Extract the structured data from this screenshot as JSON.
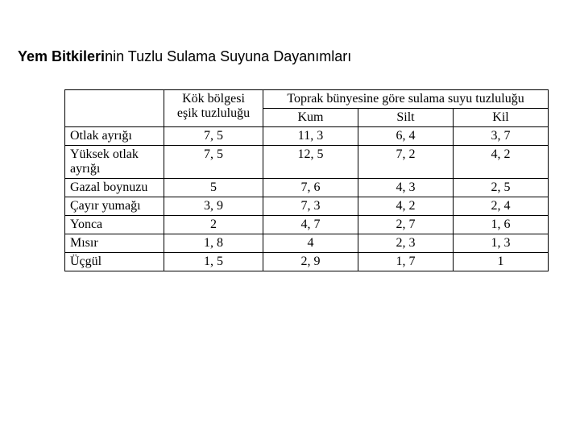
{
  "title_bold": "Yem Bitkileri",
  "title_rest": "nin Tuzlu Sulama Suyuna Dayanımları",
  "table": {
    "header_kok_l1": "Kök bölgesi",
    "header_kok_l2": "eşik tuzluluğu",
    "header_toprak": "Toprak bünyesine göre sulama suyu tuzluluğu",
    "sub_kum": "Kum",
    "sub_silt": "Silt",
    "sub_kil": "Kil",
    "rows": [
      {
        "name": "Otlak ayrığı",
        "kok": "7, 5",
        "kum": "11, 3",
        "silt": "6, 4",
        "kil": "3, 7"
      },
      {
        "name": "Yüksek otlak ayrığı",
        "kok": "7, 5",
        "kum": "12, 5",
        "silt": "7, 2",
        "kil": "4, 2"
      },
      {
        "name": "Gazal boynuzu",
        "kok": "5",
        "kum": "7, 6",
        "silt": "4, 3",
        "kil": "2, 5"
      },
      {
        "name": "Çayır yumağı",
        "kok": "3, 9",
        "kum": "7, 3",
        "silt": "4, 2",
        "kil": "2, 4"
      },
      {
        "name": "Yonca",
        "kok": "2",
        "kum": "4, 7",
        "silt": "2, 7",
        "kil": "1, 6"
      },
      {
        "name": "Mısır",
        "kok": "1, 8",
        "kum": "4",
        "silt": "2, 3",
        "kil": "1, 3"
      },
      {
        "name": "Üçgül",
        "kok": "1, 5",
        "kum": "2, 9",
        "silt": "1, 7",
        "kil": "1"
      }
    ]
  }
}
